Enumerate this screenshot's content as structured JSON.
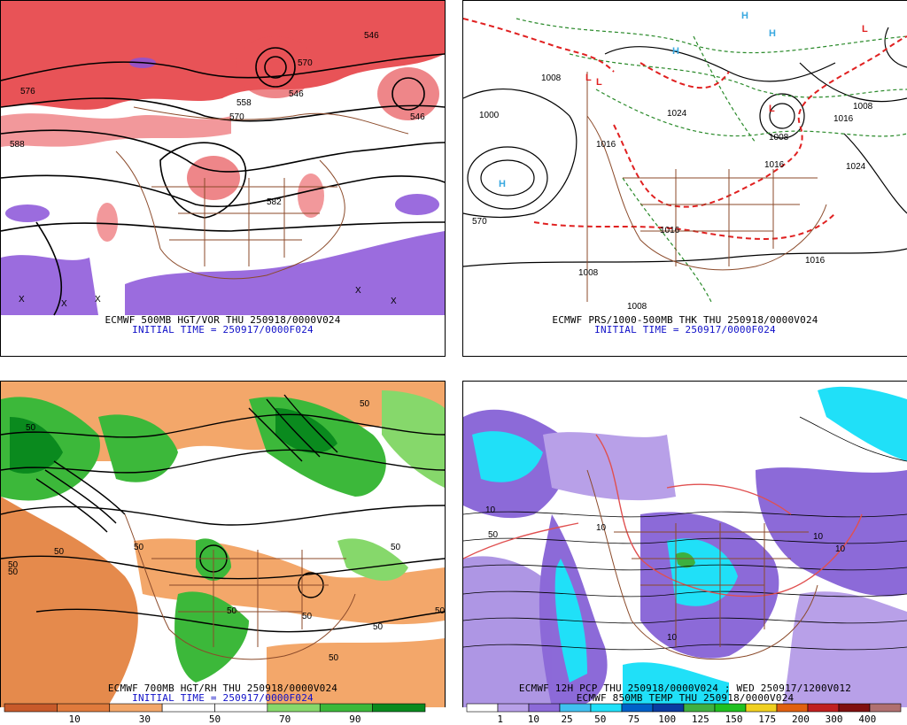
{
  "panels": [
    {
      "caption": "ECMWF 500MB HGT/VOR THU 250918/0000V024",
      "initial_time": "INITIAL TIME = 250917/0000F024",
      "contour_labels": [
        "546",
        "570",
        "558",
        "576",
        "582",
        "588",
        "546",
        "546",
        "570"
      ],
      "symbols": [
        "X",
        "X",
        "X",
        "X",
        "X"
      ]
    },
    {
      "caption": "ECMWF PRS/1000-500MB THK THU 250918/0000V024",
      "initial_time": "INITIAL TIME = 250917/0000F024",
      "contour_labels": [
        "1000",
        "1008",
        "1016",
        "1024",
        "1008",
        "1016",
        "1008",
        "1016",
        "1008",
        "1016",
        "1024",
        "1008",
        "570",
        "1016"
      ],
      "pressure_centers": [
        "H",
        "H",
        "H",
        "H",
        "L",
        "L",
        "L",
        "L"
      ]
    },
    {
      "caption": "ECMWF 700MB HGT/RH THU 250918/0000V024",
      "initial_time": "INITIAL TIME = 250917/0000F024",
      "contour_labels": [
        "50",
        "50",
        "50",
        "50",
        "50",
        "50",
        "50",
        "50",
        "50",
        "50",
        "50",
        "50"
      ],
      "colorbar": {
        "ticks": [
          "10",
          "30",
          "50",
          "70",
          "90"
        ],
        "colors": [
          "#c85a2a",
          "#e07a3c",
          "#f3a76a",
          "#ffffff",
          "#ffffff",
          "#86d86b",
          "#3cb83a",
          "#0a8a1e"
        ]
      }
    },
    {
      "caption": "ECMWF 12H PCP THU 250918/0000V024 ; WED 250917/1200V012",
      "subcaption": "ECMWF 850MB TEMP THU 250918/0000V024",
      "contour_labels": [
        "10",
        "10",
        "10",
        "10",
        "50",
        "10"
      ],
      "colorbar": {
        "ticks": [
          "1",
          "10",
          "25",
          "50",
          "75",
          "100",
          "125",
          "150",
          "175",
          "200",
          "300",
          "400"
        ],
        "colors": [
          "#ffffff",
          "#b8a0e8",
          "#8c6ad8",
          "#40c0f0",
          "#20e0f8",
          "#0060c8",
          "#0a3aa0",
          "#40b040",
          "#20c020",
          "#f0d020",
          "#e06010",
          "#c02020",
          "#801010",
          "#b07070"
        ]
      }
    }
  ]
}
